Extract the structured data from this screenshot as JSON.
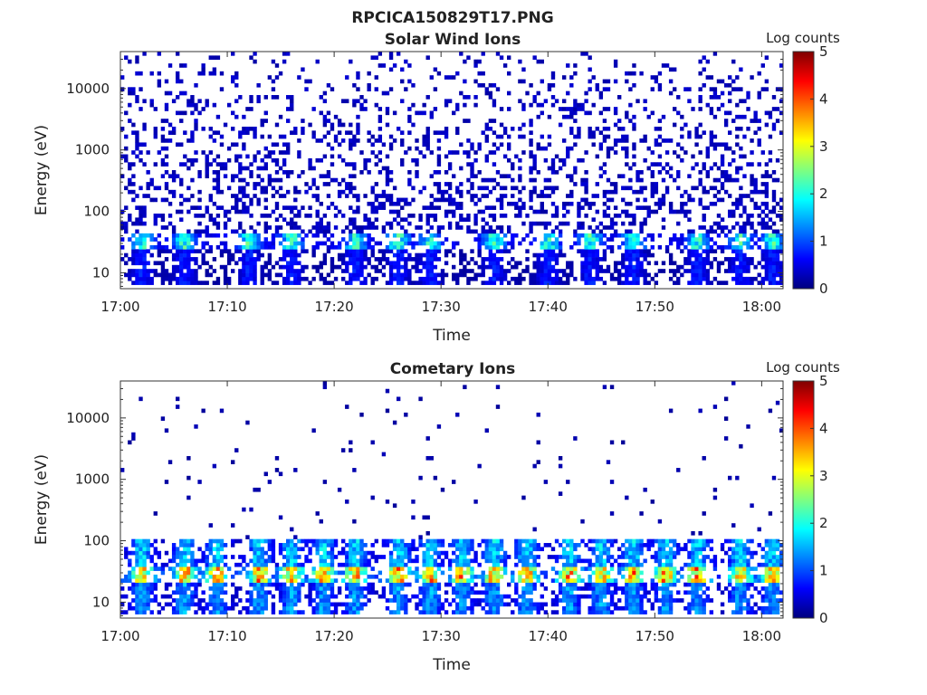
{
  "figure": {
    "title": "RPCICA150829T17.PNG"
  },
  "colormap": {
    "name": "jet",
    "stops": [
      "#00007f",
      "#0000ff",
      "#007fff",
      "#00ffff",
      "#7fff7f",
      "#ffff00",
      "#ff7f00",
      "#ff0000",
      "#7f0000"
    ]
  },
  "chart_data": [
    {
      "type": "heatmap",
      "title": "Solar Wind Ions",
      "xlabel": "Time",
      "ylabel": "Energy (eV)",
      "x_range": [
        "17:00",
        "18:02"
      ],
      "x_ticks": [
        "17:00",
        "17:10",
        "17:20",
        "17:30",
        "17:40",
        "17:50",
        "18:00"
      ],
      "y_scale": "log",
      "y_range": [
        5.5,
        40000
      ],
      "y_ticks": [
        10,
        100,
        1000,
        10000
      ],
      "y_tick_labels": [
        "10",
        "100",
        "1000",
        "10000"
      ],
      "colorbar": {
        "label": "Log counts",
        "range": [
          0,
          5
        ],
        "ticks": [
          "0",
          "1",
          "2",
          "3",
          "4",
          "5"
        ]
      },
      "bands": [
        {
          "energy_range_eV": [
            25,
            45
          ],
          "peak_log_counts": 2.2
        },
        {
          "energy_range_eV": [
            6,
            25
          ],
          "peak_log_counts": 0.8
        },
        {
          "energy_range_eV": [
            45,
            40000
          ],
          "peak_log_counts": 0.3,
          "sparse": true
        }
      ],
      "pulse_times": [
        "17:02",
        "17:06",
        "17:12",
        "17:16",
        "17:22",
        "17:26",
        "17:29",
        "17:35",
        "17:40",
        "17:44",
        "17:48",
        "17:54",
        "17:58",
        "18:01"
      ]
    },
    {
      "type": "heatmap",
      "title": "Cometary Ions",
      "xlabel": "Time",
      "ylabel": "Energy (eV)",
      "x_range": [
        "17:00",
        "18:02"
      ],
      "x_ticks": [
        "17:00",
        "17:10",
        "17:20",
        "17:30",
        "17:40",
        "17:50",
        "18:00"
      ],
      "y_scale": "log",
      "y_range": [
        5.5,
        40000
      ],
      "y_ticks": [
        10,
        100,
        1000,
        10000
      ],
      "y_tick_labels": [
        "10",
        "100",
        "1000",
        "10000"
      ],
      "colorbar": {
        "label": "Log counts",
        "range": [
          0,
          5
        ],
        "ticks": [
          "0",
          "1",
          "2",
          "3",
          "4",
          "5"
        ]
      },
      "bands": [
        {
          "energy_range_eV": [
            22,
            40
          ],
          "peak_log_counts": 3.8
        },
        {
          "energy_range_eV": [
            40,
            100
          ],
          "peak_log_counts": 1.8
        },
        {
          "energy_range_eV": [
            6,
            22
          ],
          "peak_log_counts": 1.5
        },
        {
          "energy_range_eV": [
            100,
            40000
          ],
          "peak_log_counts": 0.2,
          "sparse": true
        }
      ],
      "pulse_times": [
        "17:02",
        "17:06",
        "17:09",
        "17:13",
        "17:16",
        "17:19",
        "17:22",
        "17:26",
        "17:29",
        "17:32",
        "17:35",
        "17:38",
        "17:42",
        "17:45",
        "17:48",
        "17:51",
        "17:54",
        "17:58",
        "18:01"
      ]
    }
  ]
}
